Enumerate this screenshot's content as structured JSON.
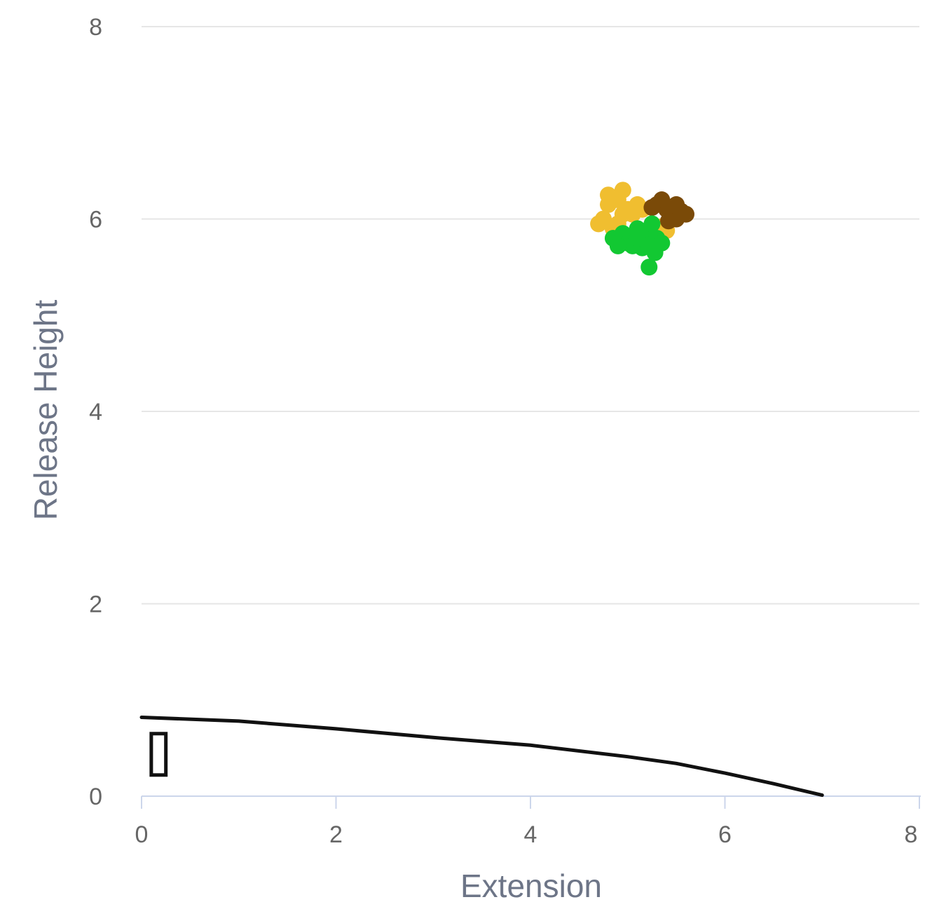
{
  "chart_data": {
    "type": "scatter",
    "title": "",
    "xlabel": "Extension",
    "ylabel": "Release Height",
    "xlim": [
      0,
      8
    ],
    "ylim": [
      0,
      8
    ],
    "x_ticks": [
      0,
      2,
      4,
      6,
      8
    ],
    "y_ticks": [
      0,
      2,
      4,
      6,
      8
    ],
    "grid": "horizontal",
    "legend": "none",
    "series": [
      {
        "color": "#f0be30",
        "points": [
          [
            4.8,
            6.15
          ],
          [
            4.9,
            6.2
          ],
          [
            4.95,
            6.3
          ],
          [
            5.0,
            6.1
          ],
          [
            5.1,
            6.15
          ],
          [
            4.75,
            6.0
          ],
          [
            4.7,
            5.95
          ],
          [
            4.85,
            5.9
          ],
          [
            5.05,
            6.05
          ],
          [
            5.15,
            6.1
          ],
          [
            4.8,
            6.25
          ],
          [
            4.95,
            6.05
          ],
          [
            5.35,
            5.92
          ],
          [
            5.4,
            5.88
          ],
          [
            4.9,
            5.95
          ]
        ]
      },
      {
        "color": "#7a4a08",
        "points": [
          [
            5.3,
            6.15
          ],
          [
            5.4,
            6.1
          ],
          [
            5.45,
            6.05
          ],
          [
            5.55,
            6.08
          ],
          [
            5.5,
            6.0
          ],
          [
            5.6,
            6.05
          ],
          [
            5.35,
            6.2
          ],
          [
            5.25,
            6.12
          ],
          [
            5.5,
            6.15
          ],
          [
            5.42,
            5.98
          ]
        ]
      },
      {
        "color": "#12c832",
        "points": [
          [
            4.85,
            5.8
          ],
          [
            4.95,
            5.85
          ],
          [
            5.0,
            5.75
          ],
          [
            5.1,
            5.9
          ],
          [
            5.2,
            5.85
          ],
          [
            5.25,
            5.95
          ],
          [
            5.3,
            5.8
          ],
          [
            5.15,
            5.7
          ],
          [
            5.05,
            5.72
          ],
          [
            4.9,
            5.72
          ],
          [
            5.35,
            5.75
          ],
          [
            5.28,
            5.65
          ],
          [
            5.1,
            5.8
          ],
          [
            5.22,
            5.73
          ],
          [
            5.22,
            5.5
          ]
        ]
      }
    ],
    "ground_curve": [
      [
        0,
        0.82
      ],
      [
        1,
        0.78
      ],
      [
        2,
        0.7
      ],
      [
        3,
        0.61
      ],
      [
        4,
        0.53
      ],
      [
        5,
        0.41
      ],
      [
        5.5,
        0.34
      ],
      [
        6,
        0.24
      ],
      [
        6.5,
        0.13
      ],
      [
        7.0,
        0.01
      ]
    ],
    "rubber": {
      "x_range": [
        0.1,
        0.25
      ],
      "y_range": [
        0.22,
        0.65
      ]
    }
  }
}
